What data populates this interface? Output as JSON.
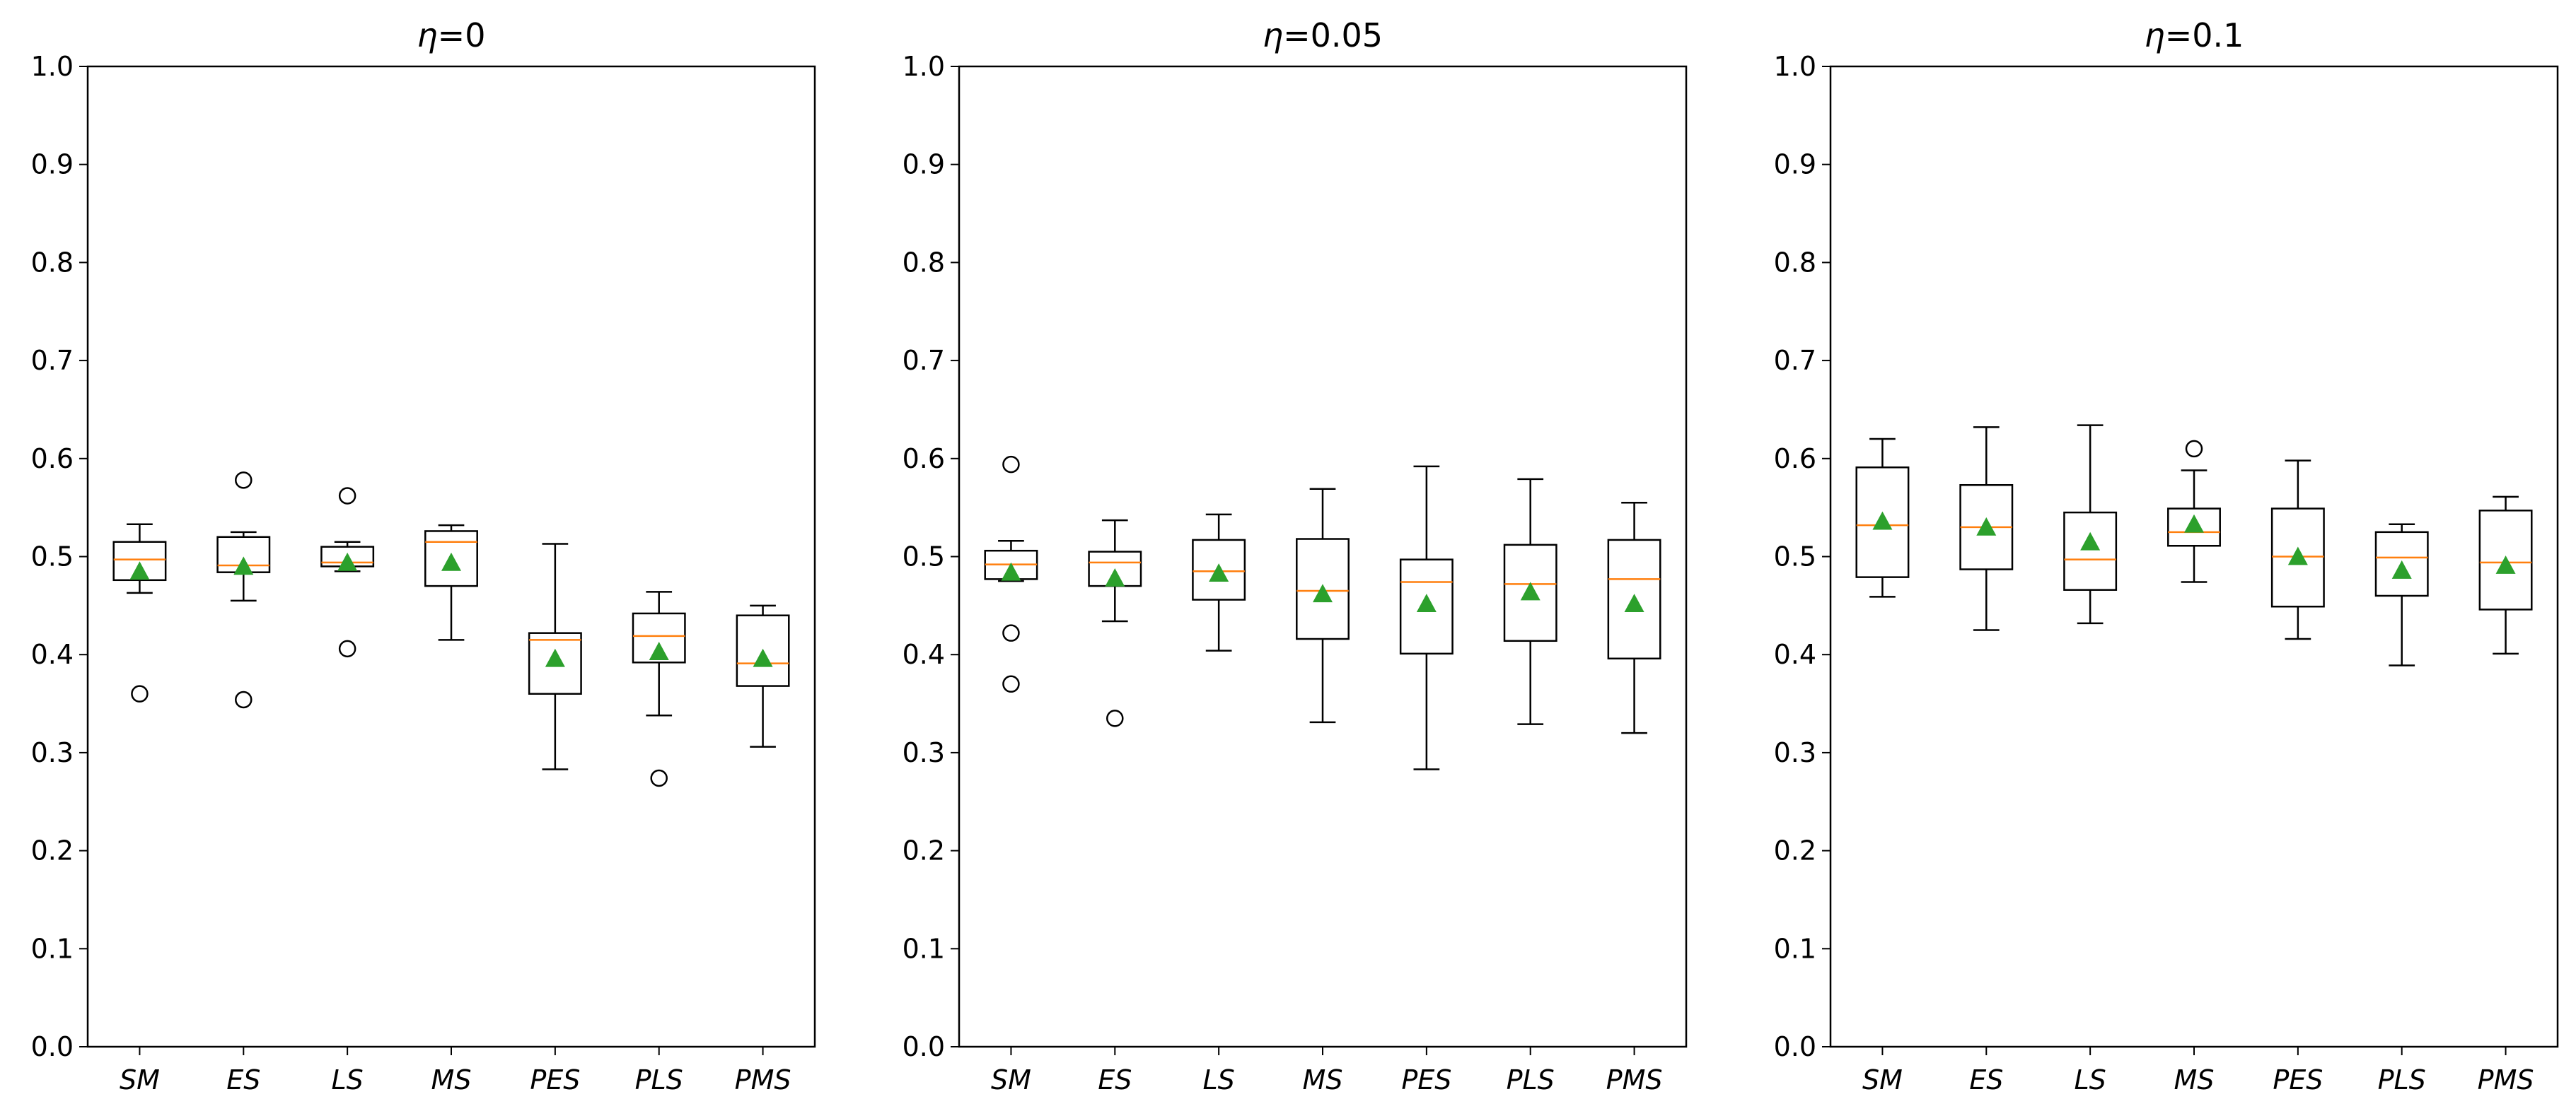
{
  "chart_data": [
    {
      "type": "boxplot",
      "title": "η=0",
      "title_symbol": "η",
      "title_value": "=0",
      "ylim": [
        0.0,
        1.0
      ],
      "yticks": [
        "0.0",
        "0.1",
        "0.2",
        "0.3",
        "0.4",
        "0.5",
        "0.6",
        "0.7",
        "0.8",
        "0.9",
        "1.0"
      ],
      "categories": [
        "SM",
        "ES",
        "LS",
        "MS",
        "PES",
        "PLS",
        "PMS"
      ],
      "boxes": [
        {
          "whislo": 0.463,
          "q1": 0.476,
          "med": 0.497,
          "q3": 0.515,
          "whishi": 0.533,
          "mean": 0.485,
          "fliers": [
            0.36
          ]
        },
        {
          "whislo": 0.455,
          "q1": 0.484,
          "med": 0.491,
          "q3": 0.52,
          "whishi": 0.525,
          "mean": 0.49,
          "fliers": [
            0.578,
            0.354
          ]
        },
        {
          "whislo": 0.485,
          "q1": 0.49,
          "med": 0.494,
          "q3": 0.51,
          "whishi": 0.515,
          "mean": 0.494,
          "fliers": [
            0.562,
            0.406
          ]
        },
        {
          "whislo": 0.415,
          "q1": 0.47,
          "med": 0.515,
          "q3": 0.526,
          "whishi": 0.532,
          "mean": 0.494,
          "fliers": []
        },
        {
          "whislo": 0.283,
          "q1": 0.36,
          "med": 0.415,
          "q3": 0.422,
          "whishi": 0.513,
          "mean": 0.396,
          "fliers": []
        },
        {
          "whislo": 0.338,
          "q1": 0.392,
          "med": 0.419,
          "q3": 0.442,
          "whishi": 0.464,
          "mean": 0.403,
          "fliers": [
            0.274
          ]
        },
        {
          "whislo": 0.306,
          "q1": 0.368,
          "med": 0.391,
          "q3": 0.44,
          "whishi": 0.45,
          "mean": 0.396,
          "fliers": []
        }
      ]
    },
    {
      "type": "boxplot",
      "title": "η=0.05",
      "title_symbol": "η",
      "title_value": "=0.05",
      "ylim": [
        0.0,
        1.0
      ],
      "yticks": [
        "0.0",
        "0.1",
        "0.2",
        "0.3",
        "0.4",
        "0.5",
        "0.6",
        "0.7",
        "0.8",
        "0.9",
        "1.0"
      ],
      "categories": [
        "SM",
        "ES",
        "LS",
        "MS",
        "PES",
        "PLS",
        "PMS"
      ],
      "boxes": [
        {
          "whislo": 0.475,
          "q1": 0.477,
          "med": 0.492,
          "q3": 0.506,
          "whishi": 0.516,
          "mean": 0.484,
          "fliers": [
            0.594,
            0.422,
            0.37
          ]
        },
        {
          "whislo": 0.434,
          "q1": 0.47,
          "med": 0.494,
          "q3": 0.505,
          "whishi": 0.537,
          "mean": 0.478,
          "fliers": [
            0.335
          ]
        },
        {
          "whislo": 0.404,
          "q1": 0.456,
          "med": 0.485,
          "q3": 0.517,
          "whishi": 0.543,
          "mean": 0.483,
          "fliers": []
        },
        {
          "whislo": 0.331,
          "q1": 0.416,
          "med": 0.465,
          "q3": 0.518,
          "whishi": 0.569,
          "mean": 0.462,
          "fliers": []
        },
        {
          "whislo": 0.283,
          "q1": 0.401,
          "med": 0.474,
          "q3": 0.497,
          "whishi": 0.592,
          "mean": 0.452,
          "fliers": []
        },
        {
          "whislo": 0.329,
          "q1": 0.414,
          "med": 0.472,
          "q3": 0.512,
          "whishi": 0.579,
          "mean": 0.464,
          "fliers": []
        },
        {
          "whislo": 0.32,
          "q1": 0.396,
          "med": 0.477,
          "q3": 0.517,
          "whishi": 0.555,
          "mean": 0.452,
          "fliers": []
        }
      ]
    },
    {
      "type": "boxplot",
      "title": "η=0.1",
      "title_symbol": "η",
      "title_value": "=0.1",
      "ylim": [
        0.0,
        1.0
      ],
      "yticks": [
        "0.0",
        "0.1",
        "0.2",
        "0.3",
        "0.4",
        "0.5",
        "0.6",
        "0.7",
        "0.8",
        "0.9",
        "1.0"
      ],
      "categories": [
        "SM",
        "ES",
        "LS",
        "MS",
        "PES",
        "PLS",
        "PMS"
      ],
      "boxes": [
        {
          "whislo": 0.459,
          "q1": 0.479,
          "med": 0.532,
          "q3": 0.591,
          "whishi": 0.62,
          "mean": 0.536,
          "fliers": []
        },
        {
          "whislo": 0.425,
          "q1": 0.487,
          "med": 0.53,
          "q3": 0.573,
          "whishi": 0.632,
          "mean": 0.53,
          "fliers": []
        },
        {
          "whislo": 0.432,
          "q1": 0.466,
          "med": 0.497,
          "q3": 0.545,
          "whishi": 0.634,
          "mean": 0.515,
          "fliers": []
        },
        {
          "whislo": 0.474,
          "q1": 0.511,
          "med": 0.525,
          "q3": 0.549,
          "whishi": 0.588,
          "mean": 0.533,
          "fliers": [
            0.61
          ]
        },
        {
          "whislo": 0.416,
          "q1": 0.449,
          "med": 0.5,
          "q3": 0.549,
          "whishi": 0.598,
          "mean": 0.5,
          "fliers": []
        },
        {
          "whislo": 0.389,
          "q1": 0.46,
          "med": 0.499,
          "q3": 0.525,
          "whishi": 0.533,
          "mean": 0.486,
          "fliers": []
        },
        {
          "whislo": 0.401,
          "q1": 0.446,
          "med": 0.494,
          "q3": 0.547,
          "whishi": 0.561,
          "mean": 0.491,
          "fliers": []
        }
      ]
    }
  ],
  "colors": {
    "median": "#ff7f0e",
    "mean_marker": "#2ca02c",
    "box": "#000000"
  }
}
